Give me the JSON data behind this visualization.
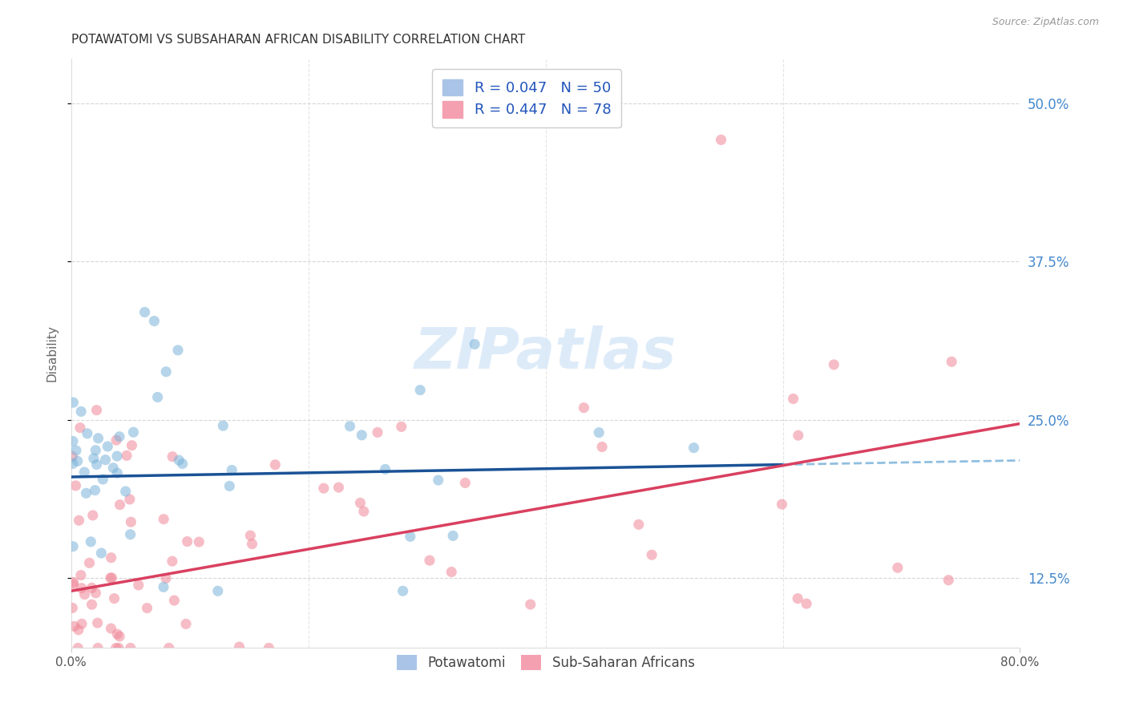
{
  "title": "POTAWATOMI VS SUBSAHARAN AFRICAN DISABILITY CORRELATION CHART",
  "source": "Source: ZipAtlas.com",
  "ylabel": "Disability",
  "xlabel": "",
  "xlim": [
    0.0,
    0.8
  ],
  "ylim": [
    0.07,
    0.535
  ],
  "yticks": [
    0.125,
    0.25,
    0.375,
    0.5
  ],
  "ytick_labels": [
    "12.5%",
    "25.0%",
    "37.5%",
    "50.0%"
  ],
  "watermark": "ZIPatlas",
  "legend_entries": [
    {
      "label": "R = 0.047   N = 50",
      "color": "#aac4e8"
    },
    {
      "label": "R = 0.447   N = 78",
      "color": "#f4a0b0"
    }
  ],
  "blue_color": "#7ab3d9",
  "pink_color": "#f08898",
  "blue_line_color": "#1a5296",
  "pink_line_color": "#d94060",
  "dashed_line_color": "#90bfe0",
  "grid_color": "#cccccc",
  "background_color": "#ffffff",
  "title_color": "#333333",
  "title_fontsize": 11,
  "axis_label_color": "#666666",
  "tick_label_color_right": "#4488cc",
  "watermark_color": "#d8e8f8",
  "watermark_fontsize": 52,
  "blue_line_start_y": 0.205,
  "blue_line_end_y": 0.218,
  "pink_line_start_y": 0.115,
  "pink_line_end_y": 0.247
}
